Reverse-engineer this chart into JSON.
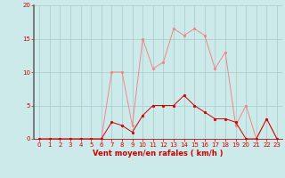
{
  "hours": [
    0,
    1,
    2,
    3,
    4,
    5,
    6,
    7,
    8,
    9,
    10,
    11,
    12,
    13,
    14,
    15,
    16,
    17,
    18,
    19,
    20,
    21,
    22,
    23
  ],
  "wind_avg": [
    0,
    0,
    0,
    0,
    0,
    0,
    0,
    2.5,
    2,
    1,
    3.5,
    5,
    5,
    5,
    6.5,
    5,
    4,
    3,
    3,
    2.5,
    0,
    0,
    3,
    0
  ],
  "wind_gust": [
    0,
    0,
    0,
    0,
    0,
    0,
    0,
    10,
    10,
    2,
    15,
    10.5,
    11.5,
    16.5,
    15.5,
    16.5,
    15.5,
    10.5,
    13,
    2,
    5,
    0,
    3,
    0
  ],
  "bg_color": "#cdeaea",
  "grid_color": "#a8c8c8",
  "line_avg_color": "#cc0000",
  "line_gust_color": "#ee8888",
  "marker_size": 2,
  "xlabel": "Vent moyen/en rafales ( km/h )",
  "ylim": [
    0,
    20
  ],
  "yticks": [
    0,
    5,
    10,
    15,
    20
  ],
  "xticks": [
    0,
    1,
    2,
    3,
    4,
    5,
    6,
    7,
    8,
    9,
    10,
    11,
    12,
    13,
    14,
    15,
    16,
    17,
    18,
    19,
    20,
    21,
    22,
    23
  ],
  "xlim": [
    -0.5,
    23.5
  ],
  "tick_fontsize": 5,
  "xlabel_fontsize": 6,
  "left_spine_color": "#666666",
  "axis_color": "#cc0000"
}
